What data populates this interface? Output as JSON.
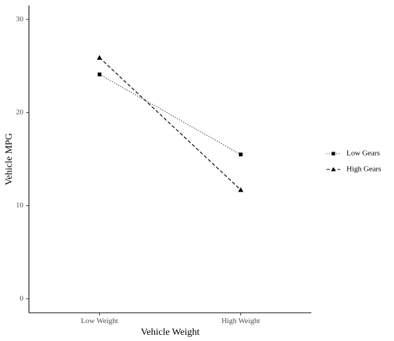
{
  "chart_data": {
    "type": "line",
    "title": "",
    "xlabel": "Vehicle Weight",
    "ylabel": "Vehicle MPG",
    "categories": [
      "Low Weight",
      "High Weight"
    ],
    "ylim": [
      -1.5,
      31.5
    ],
    "yticks": [
      "0",
      "10",
      "20",
      "30"
    ],
    "grid": false,
    "legend_position": "right",
    "series": [
      {
        "name": "Low Gears",
        "values": [
          24.1,
          15.5
        ],
        "linestyle": "dotted",
        "marker": "square",
        "color": "#000000"
      },
      {
        "name": "High Gears",
        "values": [
          25.9,
          11.7
        ],
        "linestyle": "dashed",
        "marker": "triangle",
        "color": "#000000"
      }
    ]
  }
}
